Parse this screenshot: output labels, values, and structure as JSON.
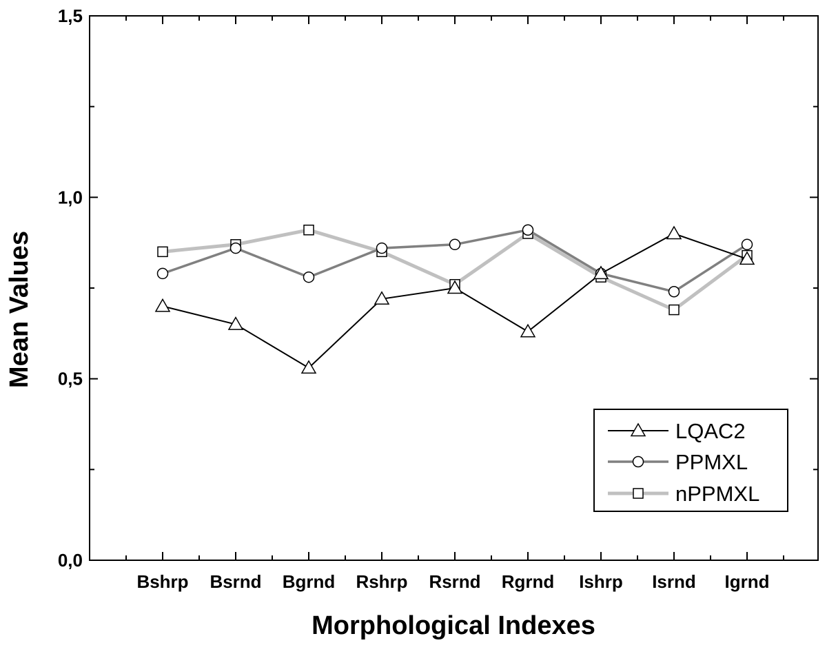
{
  "chart_data": {
    "type": "line",
    "xlabel": "Morphological Indexes",
    "ylabel": "Mean Values",
    "categories": [
      "Bshrp",
      "Bsrnd",
      "Bgrnd",
      "Rshrp",
      "Rsrnd",
      "Rgrnd",
      "Ishrp",
      "Isrnd",
      "Igrnd"
    ],
    "ylim": [
      0.0,
      1.5
    ],
    "yticks": [
      "0,0",
      "0,5",
      "1,0",
      "1,5"
    ],
    "grid": false,
    "legend_position": "bottom-right",
    "series": [
      {
        "name": "LQAC2",
        "marker": "triangle",
        "color": "#000000",
        "values": [
          0.7,
          0.65,
          0.53,
          0.72,
          0.75,
          0.63,
          0.79,
          0.9,
          0.83
        ]
      },
      {
        "name": "PPMXL",
        "marker": "circle",
        "color": "#808080",
        "values": [
          0.79,
          0.86,
          0.78,
          0.86,
          0.87,
          0.91,
          0.79,
          0.74,
          0.87
        ]
      },
      {
        "name": "nPPMXL",
        "marker": "square",
        "color": "#c0c0c0",
        "values": [
          0.85,
          0.87,
          0.91,
          0.85,
          0.76,
          0.9,
          0.78,
          0.69,
          0.84
        ]
      }
    ]
  }
}
